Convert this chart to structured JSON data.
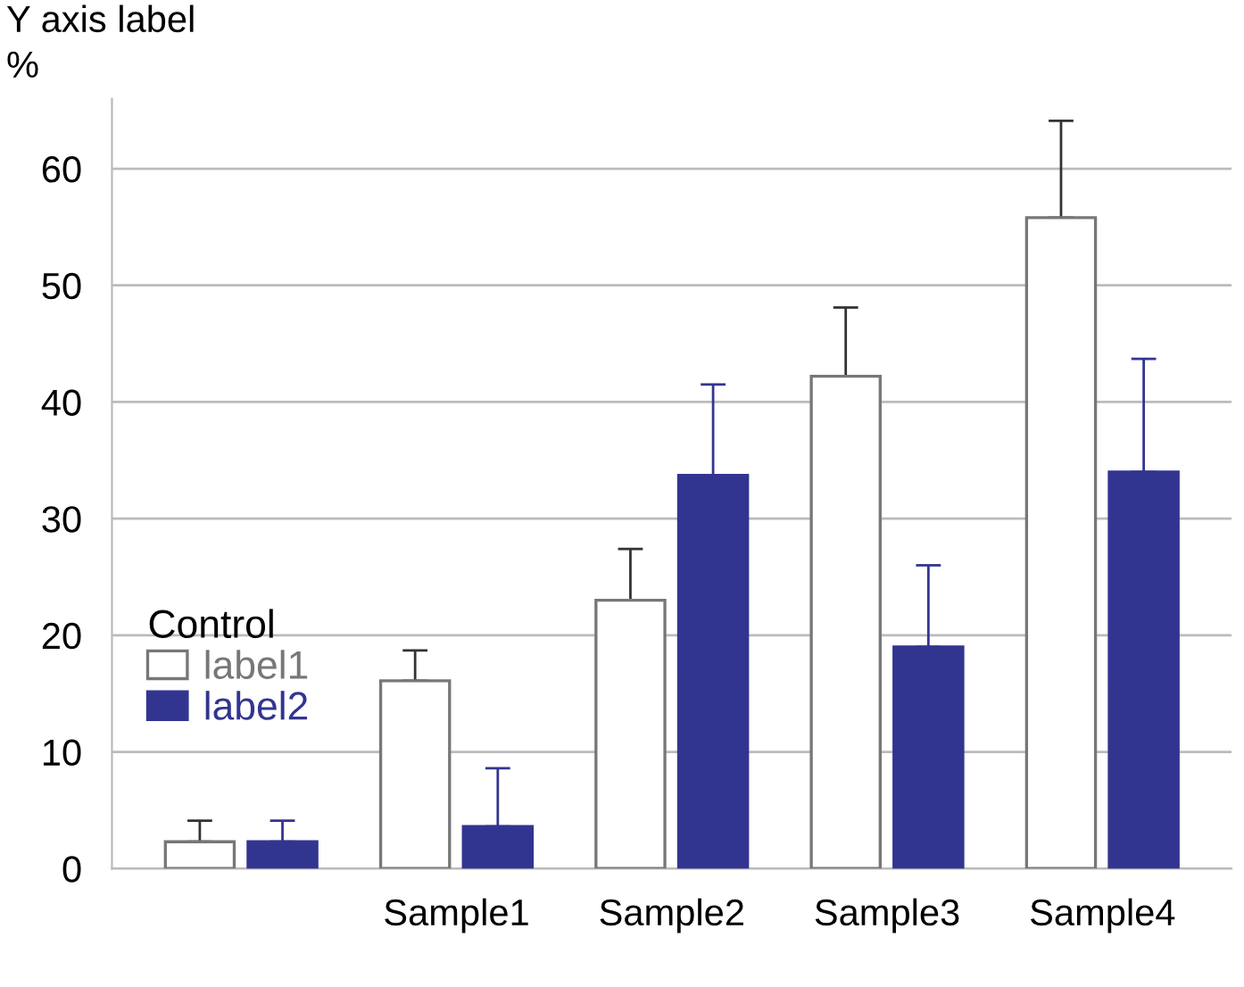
{
  "chart_data": {
    "type": "bar",
    "ylabel": "Y axis label\n%",
    "legend_title": "Control",
    "categories": [
      null,
      "Sample1",
      "Sample2",
      "Sample3",
      "Sample4"
    ],
    "series": [
      {
        "name": "label1",
        "color": "#ffffff",
        "values": [
          2.3,
          16.1,
          23.0,
          42.2,
          55.8
        ],
        "errors": [
          [
            2.3,
            4.1
          ],
          [
            16.1,
            18.7
          ],
          [
            23.0,
            27.4
          ],
          [
            42.2,
            48.1
          ],
          [
            55.8,
            64.1
          ]
        ]
      },
      {
        "name": "label2",
        "color": "#323590",
        "values": [
          2.3,
          3.6,
          33.7,
          19.0,
          34.0
        ],
        "errors": [
          [
            2.3,
            4.1
          ],
          [
            3.6,
            8.6
          ],
          [
            33.7,
            41.5
          ],
          [
            19.0,
            26.0
          ],
          [
            34.0,
            43.7
          ]
        ]
      }
    ],
    "ylim": [
      0,
      66
    ],
    "yticks": [
      0,
      10,
      20,
      30,
      40,
      50,
      60
    ],
    "grid": "y",
    "legend": "left"
  }
}
